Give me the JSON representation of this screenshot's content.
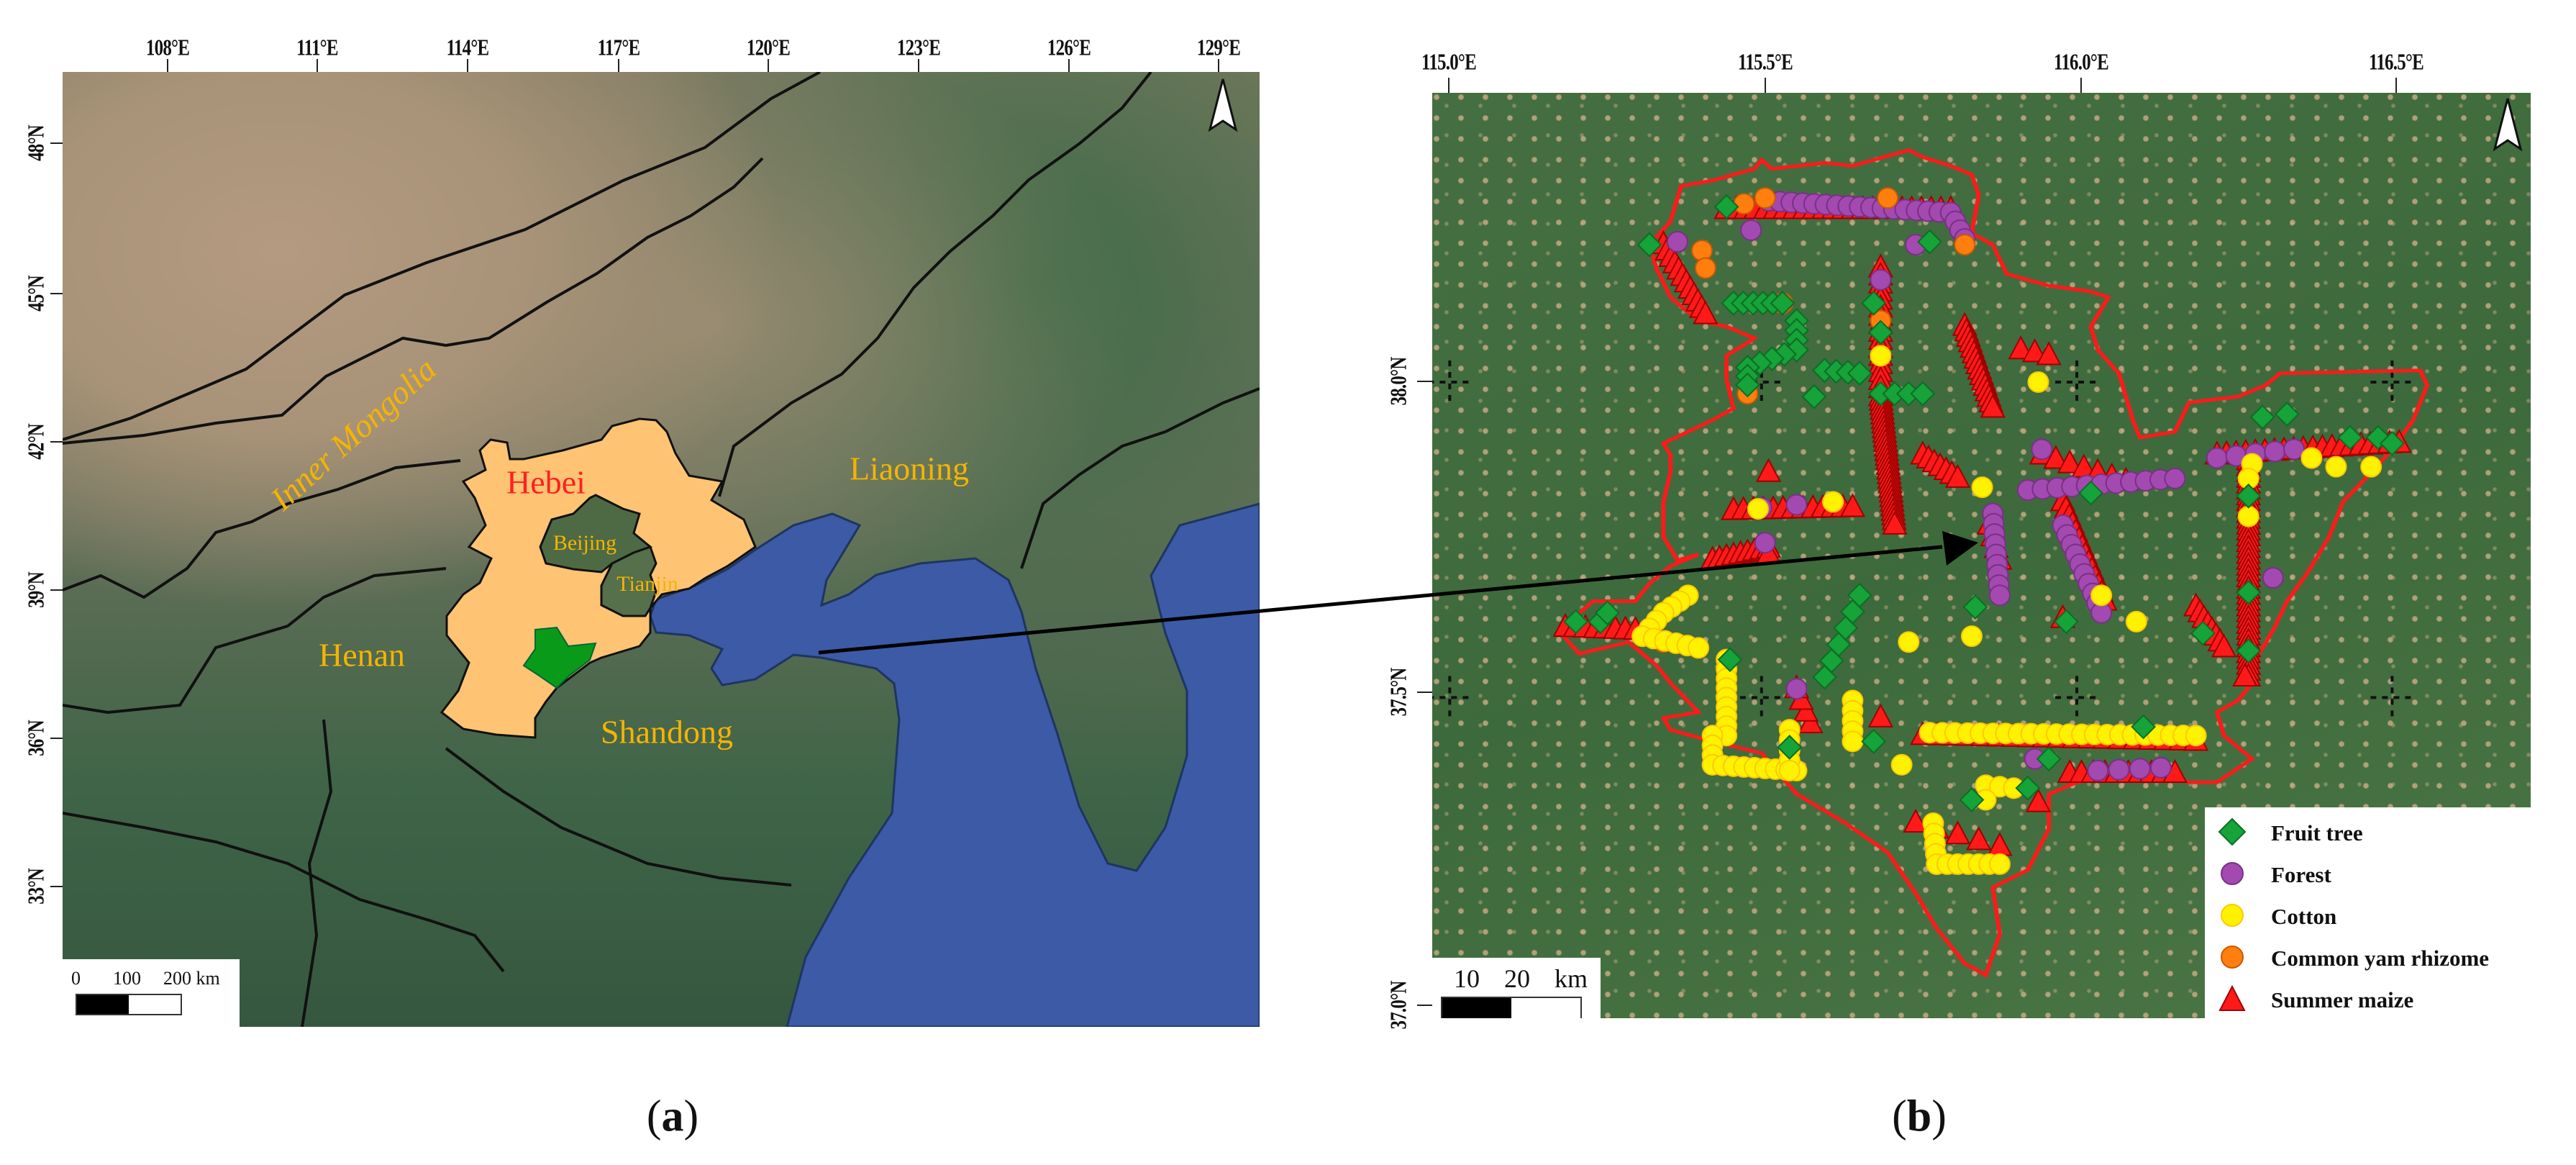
{
  "panel_a": {
    "caption_open": "(",
    "caption_letter": "a",
    "caption_close": ")",
    "lon_ticks": [
      "108°E",
      "111°E",
      "114°E",
      "117°E",
      "120°E",
      "123°E",
      "126°E",
      "129°E"
    ],
    "lat_ticks": [
      "48°N",
      "45°N",
      "42°N",
      "39°N",
      "36°N",
      "33°N"
    ],
    "regions": {
      "inner_mongolia": "Inner Mongolia",
      "hebei": "Hebei",
      "liaoning": "Liaoning",
      "beijing": "Beijing",
      "tianjin": "Tianjin",
      "henan": "Henan",
      "shandong": "Shandong"
    },
    "scale": {
      "s0": "0",
      "s1": "100",
      "s2": "200 km"
    },
    "colors": {
      "hebei_fill": "#ffc374",
      "study_area": "#0a9a1a",
      "sea": "#3c5aa6",
      "label": "#f5b400",
      "hebei_label": "#ff2020"
    },
    "north_arrow_icon": "north-arrow"
  },
  "panel_b": {
    "caption_open": "(",
    "caption_letter": "b",
    "caption_close": ")",
    "lon_ticks": [
      "115.0°E",
      "115.5°E",
      "116.0°E",
      "116.5°E"
    ],
    "lat_ticks": [
      "38.0°N",
      "37.5°N",
      "37.0°N"
    ],
    "scale": {
      "s1": "10",
      "s2": "20",
      "unit": "km"
    },
    "boundary_color": "#ff1a1a",
    "north_arrow_icon": "north-arrow",
    "legend": [
      {
        "label": "Fruit tree",
        "shape": "diamond",
        "color": "#16a33a"
      },
      {
        "label": "Forest",
        "shape": "circle",
        "color": "#a24ab0"
      },
      {
        "label": "Cotton",
        "shape": "circle",
        "color": "#fff200"
      },
      {
        "label": "Common yam rhizome",
        "shape": "circle",
        "color": "#ff7f0e"
      },
      {
        "label": "Summer maize",
        "shape": "triangle",
        "color": "#ff1a1a"
      }
    ]
  }
}
